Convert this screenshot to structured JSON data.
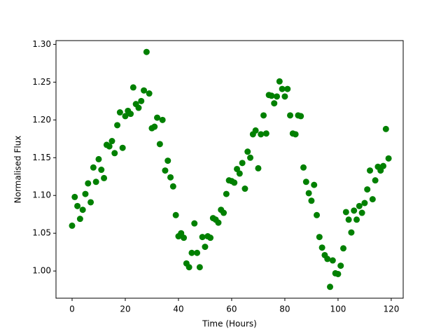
{
  "chart_data": {
    "type": "scatter",
    "x_label": "Time (Hours)",
    "y_label": "Normalised Flux",
    "color": "#008000",
    "x": [
      0,
      1,
      2,
      3,
      4,
      5,
      6,
      7,
      8,
      9,
      10,
      11,
      12,
      13,
      14,
      15,
      16,
      17,
      18,
      19,
      20,
      21,
      22,
      23,
      24,
      25,
      26,
      27,
      28,
      29,
      30,
      31,
      32,
      33,
      34,
      35,
      36,
      37,
      38,
      39,
      40,
      41,
      42,
      43,
      44,
      45,
      46,
      47,
      48,
      49,
      50,
      51,
      52,
      53,
      54,
      55,
      56,
      57,
      58,
      59,
      60,
      61,
      62,
      63,
      64,
      65,
      66,
      67,
      68,
      69,
      70,
      71,
      72,
      73,
      74,
      75,
      76,
      77,
      78,
      79,
      80,
      81,
      82,
      83,
      84,
      85,
      86,
      87,
      88,
      89,
      90,
      91,
      92,
      93,
      94,
      95,
      96,
      97,
      98,
      99,
      100,
      101,
      102,
      103,
      104,
      105,
      106,
      107,
      108,
      109,
      110,
      111,
      112,
      113,
      114,
      115,
      116,
      117,
      118,
      119
    ],
    "values": [
      1.06,
      1.098,
      1.086,
      1.069,
      1.081,
      1.102,
      1.116,
      1.091,
      1.137,
      1.118,
      1.148,
      1.134,
      1.123,
      1.167,
      1.165,
      1.172,
      1.156,
      1.193,
      1.21,
      1.163,
      1.205,
      1.212,
      1.208,
      1.243,
      1.221,
      1.216,
      1.225,
      1.239,
      1.29,
      1.235,
      1.189,
      1.191,
      1.203,
      1.168,
      1.2,
      1.133,
      1.146,
      1.124,
      1.112,
      1.074,
      1.046,
      1.05,
      1.044,
      1.01,
      1.005,
      1.024,
      1.063,
      1.024,
      1.005,
      1.045,
      1.032,
      1.046,
      1.044,
      1.07,
      1.068,
      1.064,
      1.081,
      1.077,
      1.102,
      1.12,
      1.119,
      1.117,
      1.135,
      1.129,
      1.143,
      1.109,
      1.158,
      1.15,
      1.181,
      1.186,
      1.136,
      1.181,
      1.206,
      1.182,
      1.233,
      1.232,
      1.222,
      1.231,
      1.251,
      1.241,
      1.231,
      1.241,
      1.206,
      1.182,
      1.181,
      1.206,
      1.205,
      1.137,
      1.118,
      1.103,
      1.093,
      1.114,
      1.074,
      1.045,
      1.031,
      1.021,
      1.016,
      0.979,
      1.014,
      0.997,
      0.996,
      1.007,
      1.03,
      1.078,
      1.068,
      1.051,
      1.08,
      1.068,
      1.086,
      1.077,
      1.09,
      1.108,
      1.133,
      1.095,
      1.12,
      1.138,
      1.133,
      1.139,
      1.188,
      1.149
    ],
    "xlim": [
      -6.05,
      124.5
    ],
    "ylim": [
      0.964,
      1.305
    ],
    "xticks": [
      0,
      20,
      40,
      60,
      80,
      100,
      120
    ],
    "yticks": [
      {
        "value": 1.0,
        "label": "1.00"
      },
      {
        "value": 1.05,
        "label": "1.05"
      },
      {
        "value": 1.1,
        "label": "1.10"
      },
      {
        "value": 1.15,
        "label": "1.15"
      },
      {
        "value": 1.2,
        "label": "1.20"
      },
      {
        "value": 1.25,
        "label": "1.25"
      },
      {
        "value": 1.3,
        "label": "1.30"
      }
    ]
  }
}
